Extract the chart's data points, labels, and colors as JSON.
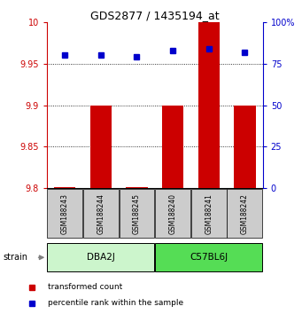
{
  "title": "GDS2877 / 1435194_at",
  "samples": [
    "GSM188243",
    "GSM188244",
    "GSM188245",
    "GSM188240",
    "GSM188241",
    "GSM188242"
  ],
  "red_values": [
    9.801,
    9.9,
    9.801,
    9.9,
    10.0,
    9.9
  ],
  "blue_values": [
    80,
    80,
    79,
    83,
    84,
    82
  ],
  "groups": [
    {
      "label": "DBA2J",
      "indices": [
        0,
        1,
        2
      ],
      "color": "#ccf5cc"
    },
    {
      "label": "C57BL6J",
      "indices": [
        3,
        4,
        5
      ],
      "color": "#55dd55"
    }
  ],
  "ylim_left": [
    9.8,
    10.0
  ],
  "ylim_right": [
    0,
    100
  ],
  "yticks_left": [
    9.8,
    9.85,
    9.9,
    9.95,
    10.0
  ],
  "yticks_right": [
    0,
    25,
    50,
    75,
    100
  ],
  "ytick_labels_left": [
    "9.8",
    "9.85",
    "9.9",
    "9.95",
    "10"
  ],
  "ytick_labels_right": [
    "0",
    "25",
    "50",
    "75",
    "100%"
  ],
  "bar_color": "#cc0000",
  "dot_color": "#0000cc",
  "bar_width": 0.6,
  "background_color": "#ffffff",
  "sample_box_color": "#cccccc",
  "left_axis_color": "#cc0000",
  "right_axis_color": "#0000cc",
  "grid_dotted_ticks": [
    9.85,
    9.9,
    9.95
  ]
}
